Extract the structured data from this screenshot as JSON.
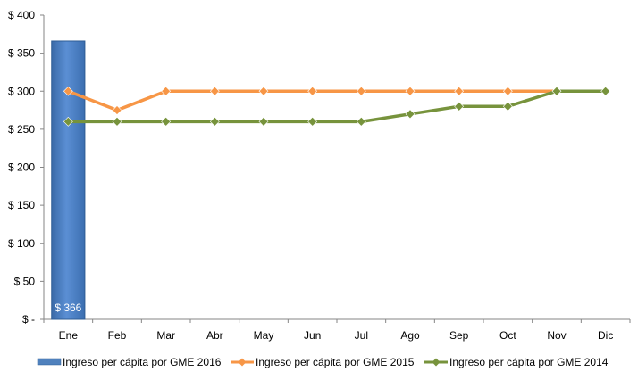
{
  "chart_data": {
    "type": "bar+line",
    "categories": [
      "Ene",
      "Feb",
      "Mar",
      "Abr",
      "May",
      "Jun",
      "Jul",
      "Ago",
      "Sep",
      "Oct",
      "Nov",
      "Dic"
    ],
    "ylim": [
      0,
      400
    ],
    "yticks": [
      0,
      50,
      100,
      150,
      200,
      250,
      300,
      350,
      400
    ],
    "ytick_labels": [
      "$ -",
      "$ 50",
      "$ 100",
      "$ 150",
      "$ 200",
      "$ 250",
      "$ 300",
      "$ 350",
      "$ 400"
    ],
    "grid": false,
    "legend_position": "bottom",
    "series": [
      {
        "name": "Ingreso per cápita por GME 2016",
        "type": "bar",
        "color": "#4f81bd",
        "values": [
          366,
          null,
          null,
          null,
          null,
          null,
          null,
          null,
          null,
          null,
          null,
          null
        ],
        "data_labels": [
          "$ 366",
          null,
          null,
          null,
          null,
          null,
          null,
          null,
          null,
          null,
          null,
          null
        ]
      },
      {
        "name": "Ingreso per cápita por GME 2015",
        "type": "line",
        "color": "#f79646",
        "marker": "diamond",
        "values": [
          300,
          275,
          300,
          300,
          300,
          300,
          300,
          300,
          300,
          300,
          300,
          null
        ]
      },
      {
        "name": "Ingreso per cápita por GME 2014",
        "type": "line",
        "color": "#77933c",
        "marker": "diamond",
        "values": [
          260,
          260,
          260,
          260,
          260,
          260,
          260,
          270,
          280,
          280,
          300,
          300
        ]
      }
    ]
  }
}
